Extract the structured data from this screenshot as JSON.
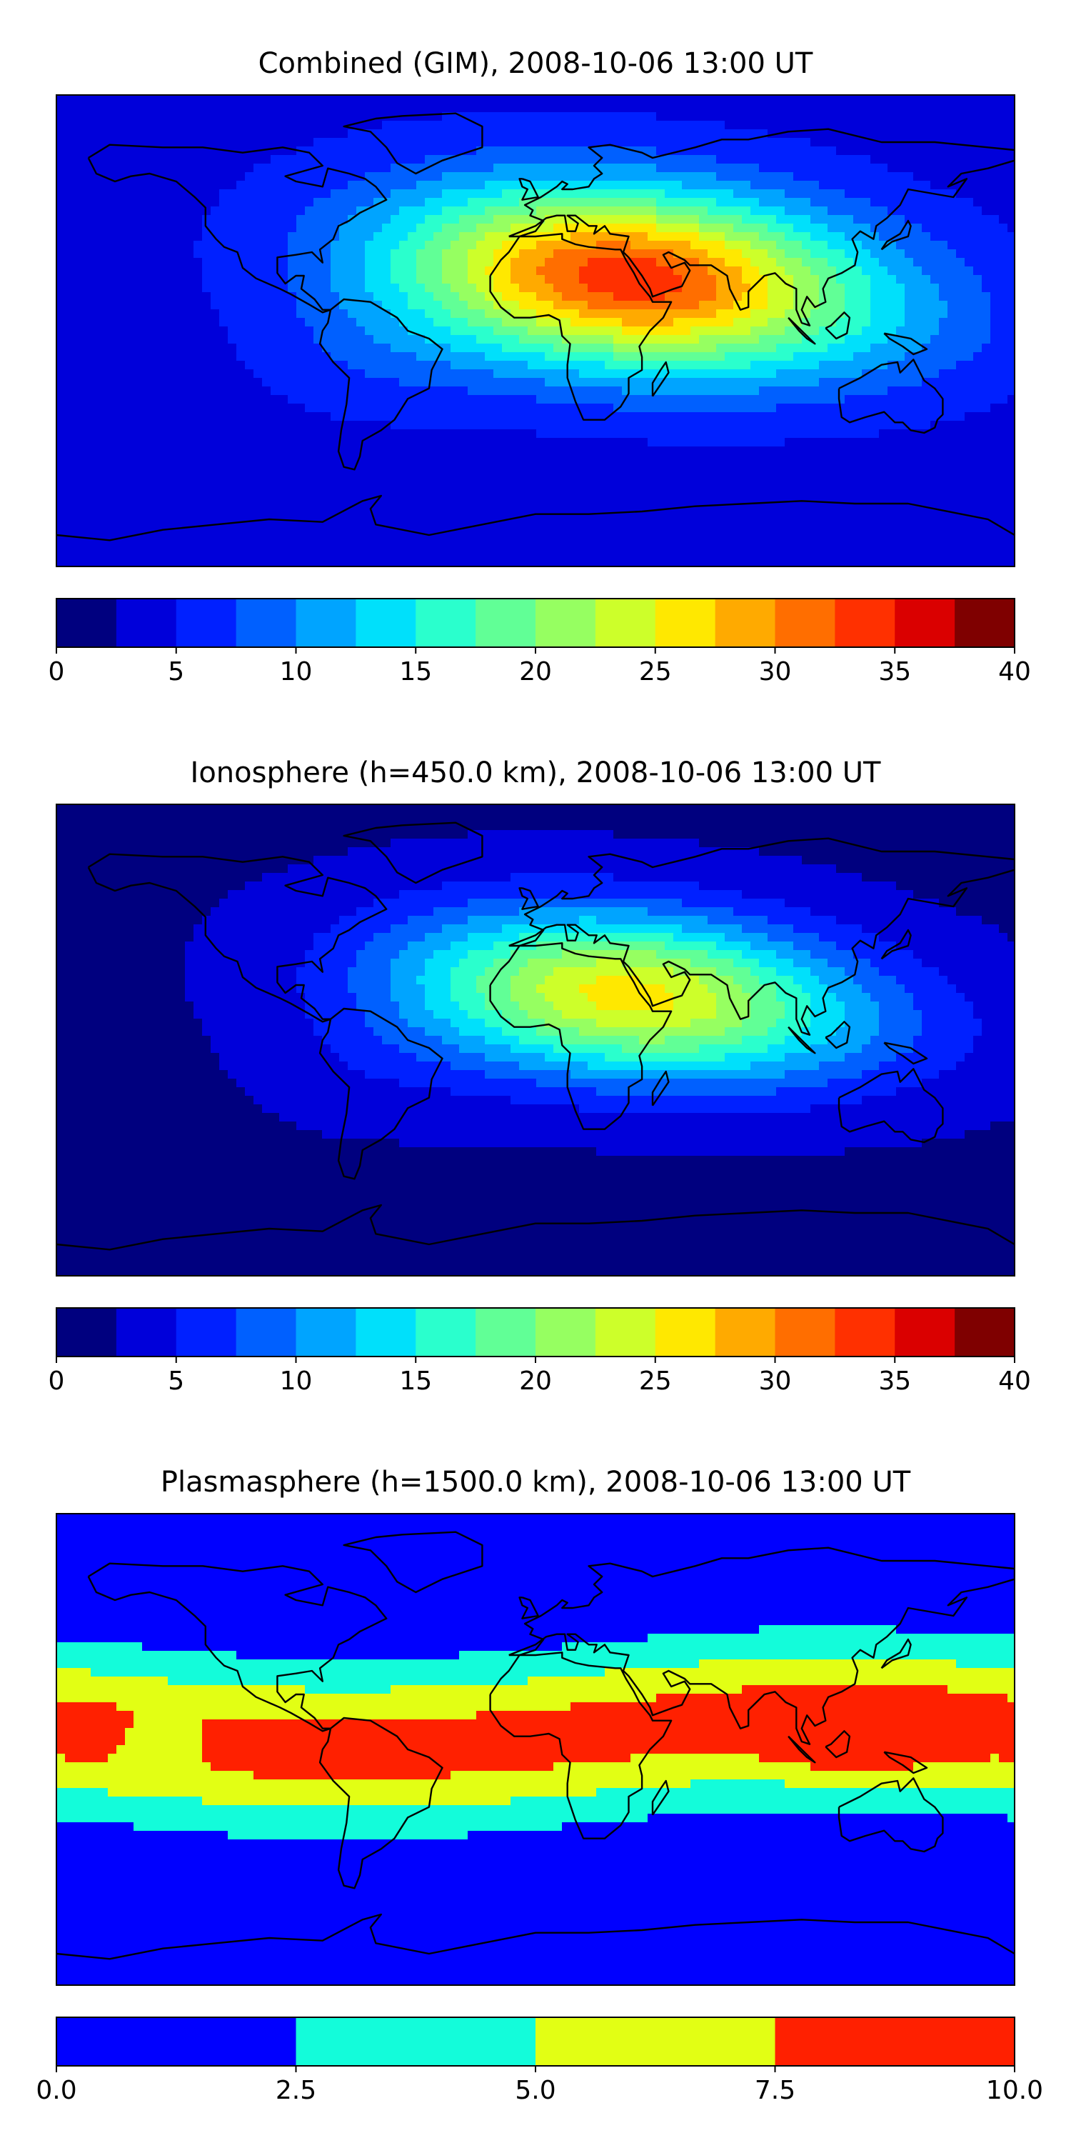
{
  "chart_data": [
    {
      "type": "heatmap",
      "title": "Combined (GIM), 2008-10-06 13:00 UT",
      "xlabel": "",
      "ylabel": "",
      "grid": false,
      "colorbar": {
        "ticks": [
          "0",
          "5",
          "10",
          "15",
          "20",
          "25",
          "30",
          "35",
          "40"
        ],
        "levels": [
          0,
          2.5,
          5,
          7.5,
          10,
          12.5,
          15,
          17.5,
          20,
          22.5,
          25,
          27.5,
          30,
          32.5,
          35,
          37.5,
          40
        ]
      },
      "map": {
        "background": 4,
        "peak": 34.0,
        "peak_center": [
          35,
          20
        ],
        "peak_width": [
          62,
          24
        ],
        "tilt": -0.25
      }
    },
    {
      "type": "heatmap",
      "title": "Ionosphere  (h=450.0 km), 2008-10-06 13:00 UT",
      "xlabel": "",
      "ylabel": "",
      "grid": false,
      "colorbar": {
        "ticks": [
          "0",
          "5",
          "10",
          "15",
          "20",
          "25",
          "30",
          "35",
          "40"
        ],
        "levels": [
          0,
          2.5,
          5,
          7.5,
          10,
          12.5,
          15,
          17.5,
          20,
          22.5,
          25,
          27.5,
          30,
          32.5,
          35,
          37.5,
          40
        ]
      },
      "map": {
        "background": 2,
        "peak": 26.0,
        "peak_center": [
          35,
          17
        ],
        "peak_width": [
          60,
          22
        ],
        "tilt": -0.25
      }
    },
    {
      "type": "heatmap",
      "title": "Plasmasphere (h=1500.0 km), 2008-10-06 13:00 UT",
      "xlabel": "",
      "ylabel": "",
      "grid": false,
      "colorbar": {
        "ticks": [
          "0.0",
          "2.5",
          "5.0",
          "7.5",
          "10.0"
        ],
        "levels": [
          0,
          2.5,
          5,
          7.5,
          10
        ]
      },
      "map": {
        "band_center_lat": 6,
        "red_region_center": [
          120,
          5
        ]
      }
    }
  ],
  "colors": {
    "jet16": [
      "#00007f",
      "#0000da",
      "#0020ff",
      "#0060ff",
      "#00a4ff",
      "#00e0fb",
      "#2affcd",
      "#61ff96",
      "#96ff61",
      "#cdff2a",
      "#ffe800",
      "#ffaa00",
      "#ff6e00",
      "#ff3000",
      "#da0000",
      "#7f0000"
    ],
    "plasma4": [
      "#0000ff",
      "#13fcda",
      "#e2ff14",
      "#ff2000"
    ]
  }
}
